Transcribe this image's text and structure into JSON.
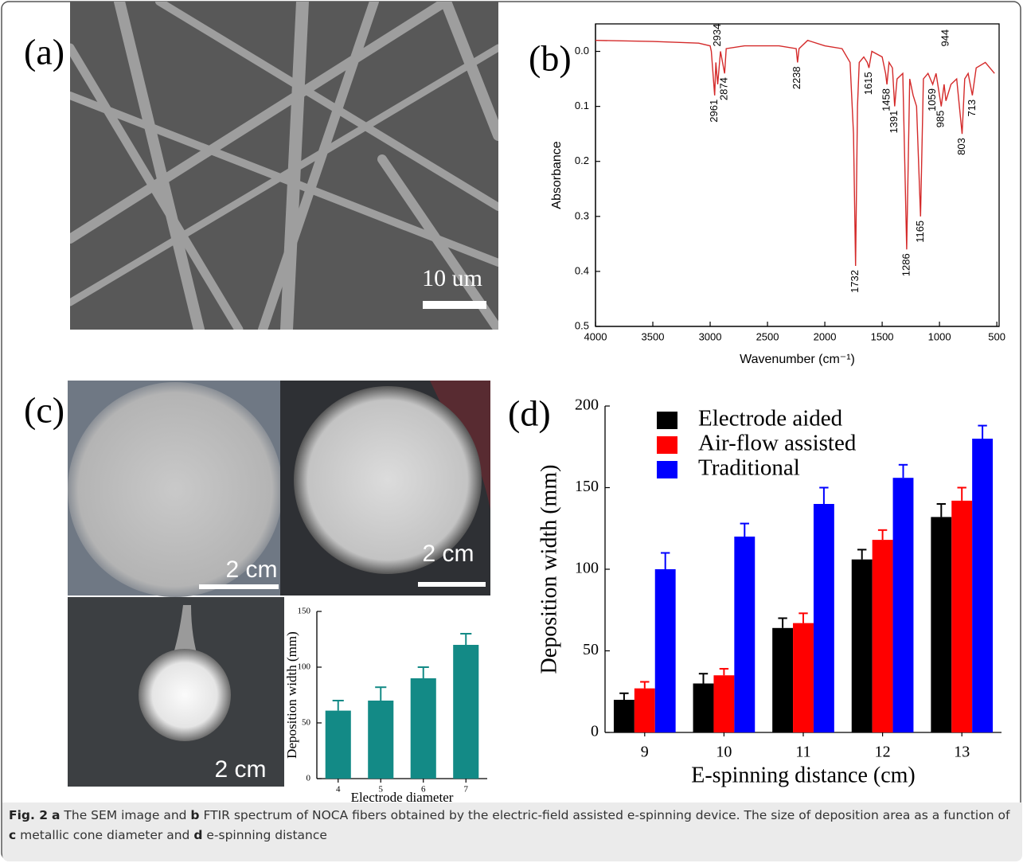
{
  "panels": {
    "a": {
      "label": "(a)",
      "scale": "10 um"
    },
    "b": {
      "label": "(b)"
    },
    "c": {
      "label": "(c)",
      "scales": [
        "2 cm",
        "2 cm",
        "2 cm"
      ]
    },
    "d": {
      "label": "(d)"
    }
  },
  "chart_data": [
    {
      "type": "line",
      "x_label": "Wavenumber (cm⁻¹)",
      "y_label": "Absorbance",
      "x": [
        4000,
        3500,
        3100,
        3000,
        2990,
        2961,
        2950,
        2934,
        2910,
        2874,
        2860,
        2700,
        2400,
        2250,
        2238,
        2225,
        2150,
        2000,
        1850,
        1780,
        1750,
        1732,
        1715,
        1700,
        1660,
        1630,
        1615,
        1590,
        1500,
        1470,
        1458,
        1440,
        1410,
        1391,
        1370,
        1320,
        1286,
        1260,
        1230,
        1200,
        1165,
        1140,
        1100,
        1059,
        1030,
        985,
        960,
        944,
        900,
        850,
        803,
        780,
        750,
        713,
        680,
        600,
        520
      ],
      "series": [
        {
          "color": "#d42a2a",
          "values": [
            -0.02,
            -0.018,
            -0.015,
            -0.01,
            0.0,
            0.08,
            0.02,
            0.06,
            0.0,
            0.04,
            -0.005,
            -0.01,
            -0.01,
            -0.005,
            0.02,
            -0.005,
            -0.02,
            -0.01,
            -0.005,
            0.02,
            0.15,
            0.39,
            0.1,
            0.02,
            0.01,
            0.02,
            0.03,
            0.0,
            0.01,
            0.04,
            0.06,
            0.02,
            0.03,
            0.1,
            0.05,
            0.04,
            0.36,
            0.05,
            0.08,
            0.1,
            0.3,
            0.05,
            0.04,
            0.06,
            0.04,
            0.1,
            0.06,
            0.09,
            0.06,
            0.05,
            0.15,
            0.05,
            0.04,
            0.08,
            0.03,
            0.02,
            0.04
          ]
        }
      ],
      "xlim": [
        4000,
        480
      ],
      "ylim": [
        -0.05,
        0.5
      ],
      "y_reversed": true,
      "xticks": [
        4000,
        3500,
        3000,
        2500,
        2000,
        1500,
        1000,
        500
      ],
      "yticks": [
        {
          "value": 0,
          "label": "0.0"
        },
        0.1,
        0.2,
        0.3,
        0.4,
        0.5
      ],
      "peaks": [
        2961,
        2934,
        2874,
        2238,
        1732,
        1615,
        1458,
        1391,
        1286,
        1165,
        1059,
        985,
        944,
        803,
        713
      ]
    },
    {
      "type": "bar",
      "x_label": "Electrode diameter",
      "y_label": "Deposition width (mm)",
      "categories": [
        "4",
        "5",
        "6",
        "7"
      ],
      "values": [
        61,
        70,
        90,
        120
      ],
      "errors": [
        9,
        12,
        10,
        10
      ],
      "color": "#138a86",
      "ylim": [
        0,
        150
      ],
      "yticks": [
        0,
        50,
        100,
        150
      ]
    },
    {
      "type": "bar",
      "x_label": "E-spinning distance (cm)",
      "y_label": "Deposition width (mm)",
      "categories": [
        "9",
        "10",
        "11",
        "12",
        "13"
      ],
      "series": [
        {
          "name": "Electrode aided",
          "color": "#000000",
          "values": [
            20,
            30,
            64,
            106,
            132
          ],
          "errors": [
            4,
            6,
            6,
            6,
            8
          ]
        },
        {
          "name": "Air-flow assisted",
          "color": "#ff0000",
          "values": [
            27,
            35,
            67,
            118,
            142
          ],
          "errors": [
            4,
            4,
            6,
            6,
            8
          ]
        },
        {
          "name": "Traditional",
          "color": "#0000ff",
          "values": [
            100,
            120,
            140,
            156,
            180
          ],
          "errors": [
            10,
            8,
            10,
            8,
            8
          ]
        }
      ],
      "ylim": [
        0,
        200
      ],
      "yticks": [
        0,
        50,
        100,
        150,
        200
      ],
      "legend": "upper left"
    }
  ],
  "caption": {
    "figure": "Fig. 2",
    "parts": [
      "a",
      "The SEM image and",
      "b",
      "FTIR spectrum of NOCA fibers obtained by the electric-field assisted e-spinning device. The size of deposition area as a function of",
      "c",
      "metallic cone diameter and",
      "d",
      "e-spinning distance"
    ]
  }
}
